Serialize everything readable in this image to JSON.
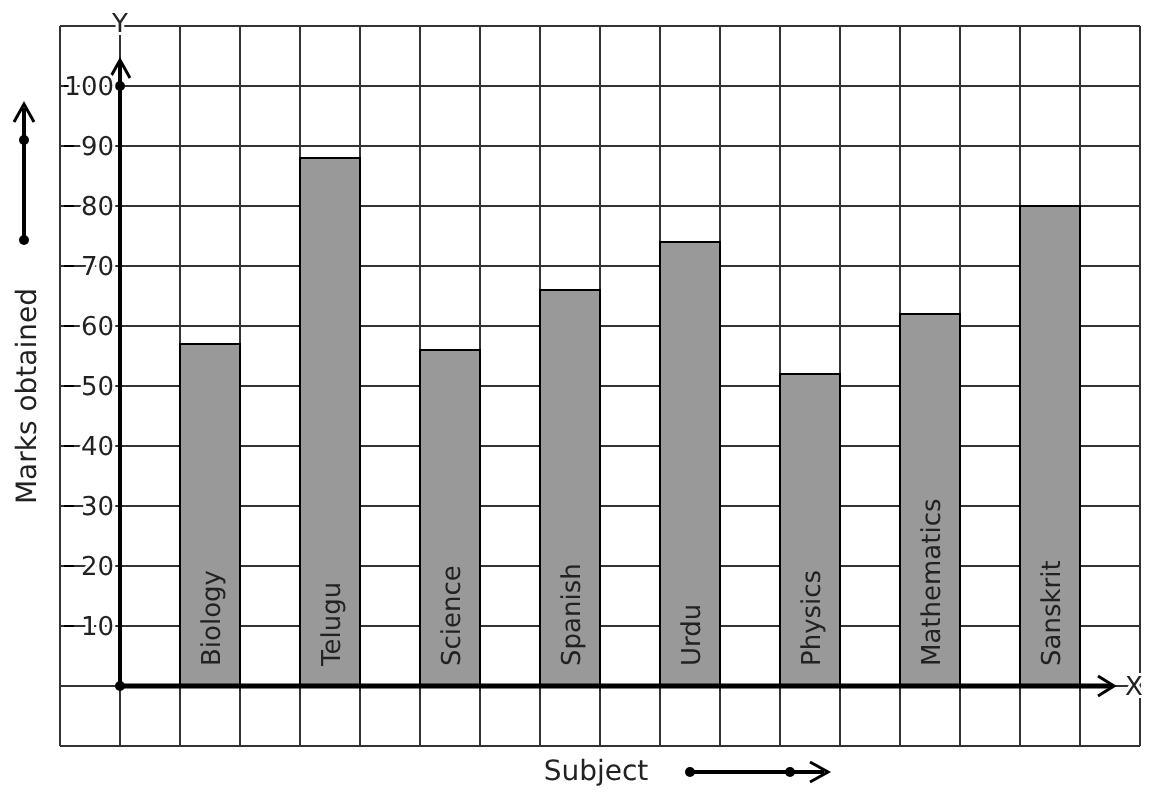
{
  "chart_data": {
    "type": "bar",
    "xlabel": "Subject",
    "ylabel": "Marks obtained",
    "annotations": [
      "Y",
      "X"
    ],
    "categories": [
      "Biology",
      "Telugu",
      "Science",
      "Spanish",
      "Urdu",
      "Physics",
      "Mathematics",
      "Sanskrit"
    ],
    "values": [
      57,
      88,
      56,
      66,
      74,
      52,
      62,
      80
    ],
    "color": "#999999",
    "ylim": [
      -10,
      110
    ],
    "yticks": [
      10,
      20,
      30,
      40,
      50,
      60,
      70,
      80,
      90,
      100
    ],
    "grid": true
  }
}
